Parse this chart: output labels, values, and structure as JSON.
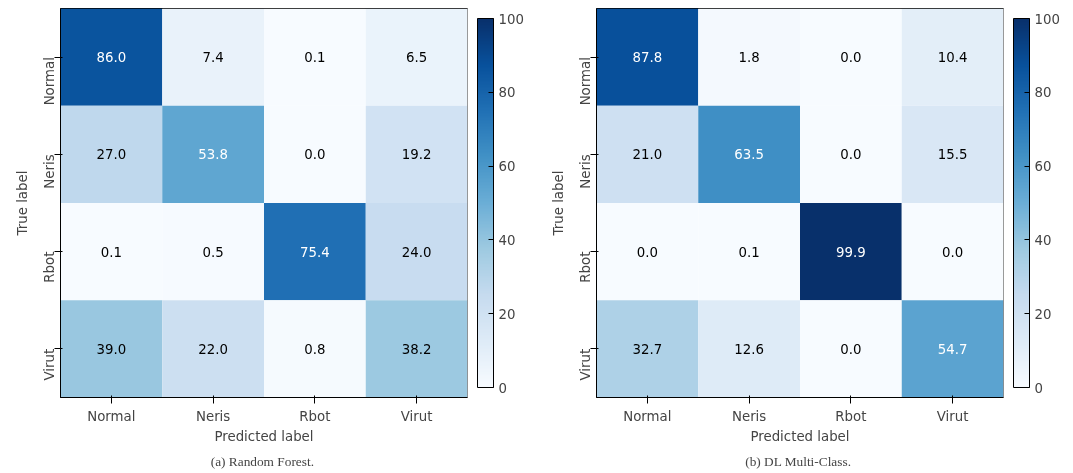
{
  "chart_data": [
    {
      "type": "heatmap",
      "title": "(a)  Random Forest.",
      "xlabel": "Predicted label",
      "ylabel": "True label",
      "categories": [
        "Normal",
        "Neris",
        "Rbot",
        "Virut"
      ],
      "y_categories": [
        "Normal",
        "Neris",
        "Rbot",
        "Virut"
      ],
      "data_labels": true,
      "clim": [
        0,
        100
      ],
      "cticks": [
        0,
        20,
        40,
        60,
        80,
        100
      ],
      "cells": [
        [
          86.0,
          7.4,
          0.1,
          6.5
        ],
        [
          27.0,
          53.8,
          0.0,
          19.2
        ],
        [
          0.1,
          0.5,
          75.4,
          24.0
        ],
        [
          39.0,
          22.0,
          0.8,
          38.2
        ]
      ],
      "cell_labels": [
        [
          "86.0",
          "7.4",
          "0.1",
          "6.5"
        ],
        [
          "27.0",
          "53.8",
          "0.0",
          "19.2"
        ],
        [
          "0.1",
          "0.5",
          "75.4",
          "24.0"
        ],
        [
          "39.0",
          "22.0",
          "0.8",
          "38.2"
        ]
      ]
    },
    {
      "type": "heatmap",
      "title": "(b)  DL Multi-Class.",
      "xlabel": "Predicted label",
      "ylabel": "True label",
      "categories": [
        "Normal",
        "Neris",
        "Rbot",
        "Virut"
      ],
      "y_categories": [
        "Normal",
        "Neris",
        "Rbot",
        "Virut"
      ],
      "data_labels": true,
      "clim": [
        0,
        100
      ],
      "cticks": [
        0,
        20,
        40,
        60,
        80,
        100
      ],
      "cells": [
        [
          87.8,
          1.8,
          0.0,
          10.4
        ],
        [
          21.0,
          63.5,
          0.0,
          15.5
        ],
        [
          0.0,
          0.1,
          99.9,
          0.0
        ],
        [
          32.7,
          12.6,
          0.0,
          54.7
        ]
      ],
      "cell_labels": [
        [
          "87.8",
          "1.8",
          "0.0",
          "10.4"
        ],
        [
          "21.0",
          "63.5",
          "0.0",
          "15.5"
        ],
        [
          "0.0",
          "0.1",
          "99.9",
          "0.0"
        ],
        [
          "32.7",
          "12.6",
          "0.0",
          "54.7"
        ]
      ]
    }
  ]
}
